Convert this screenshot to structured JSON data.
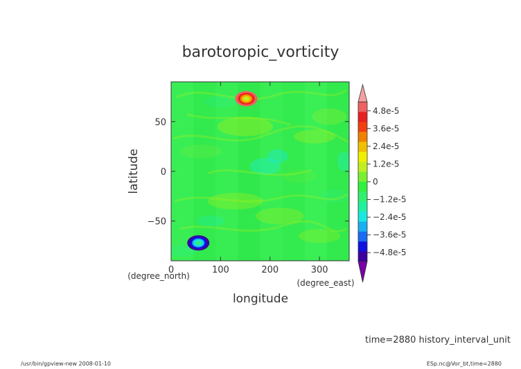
{
  "chart_data": {
    "type": "heatmap",
    "title": "barotoropic_vorticity",
    "xlabel": "longitude",
    "ylabel": "latitude",
    "x_unit": "(degree_east)",
    "y_unit": "(degree_north)",
    "xlim": [
      0,
      360
    ],
    "ylim": [
      -90,
      90
    ],
    "x_ticks": [
      0,
      100,
      200,
      300
    ],
    "y_ticks": [
      50,
      0,
      -50
    ],
    "colorbar": {
      "vmin": -5.4e-05,
      "vmax": 5.4e-05,
      "tick_values": [
        4.8e-05,
        3.6e-05,
        2.4e-05,
        1.2e-05,
        0,
        -1.2e-05,
        -2.4e-05,
        -3.6e-05,
        -4.8e-05
      ],
      "tick_labels": [
        "4.8e-5",
        "3.6e-5",
        "2.4e-5",
        "1.2e-5",
        "0",
        "−1.2e-5",
        "−2.4e-5",
        "−3.6e-5",
        "−4.8e-5"
      ],
      "over_color": "#f4a0a0",
      "under_color": "#7a00a8",
      "colors": [
        "#3a00a0",
        "#1010e0",
        "#1a6cf0",
        "#18b0f0",
        "#18e8e0",
        "#20f0a0",
        "#30f070",
        "#30f040",
        "#78f030",
        "#c0f020",
        "#f0f000",
        "#f0c000",
        "#f08000",
        "#f04010",
        "#e82020",
        "#f06060"
      ]
    },
    "features": [
      {
        "lon": 152,
        "lat": 73,
        "value": 5.2e-05
      },
      {
        "lon": 55,
        "lat": -72,
        "value": -5.2e-05
      }
    ]
  },
  "footer": {
    "time_label": "time=2880  history_interval_unit",
    "left_info": "/usr/bin/gpview-new  2008-01-10",
    "right_info": "ESp.nc@Vor_bt,time=2880"
  }
}
